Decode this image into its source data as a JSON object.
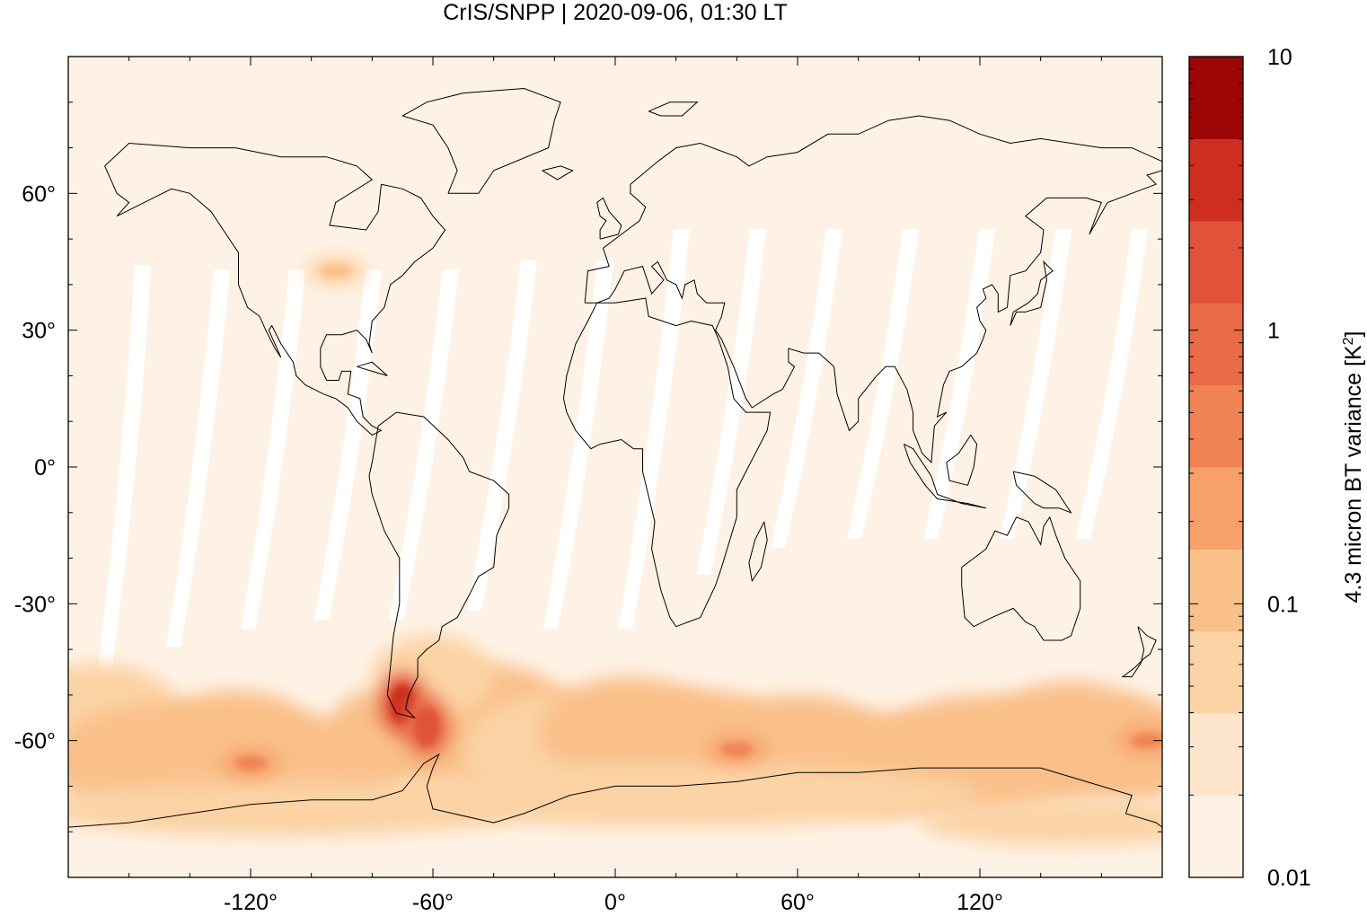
{
  "chart_data": {
    "type": "heatmap",
    "title": "CrIS/SNPP | 2020-09-06, 01:30 LT",
    "xlabel": "",
    "ylabel": "",
    "projection": "equirectangular world map with coastlines",
    "xlim": [
      -180,
      180
    ],
    "ylim": [
      -90,
      90
    ],
    "x_ticks": [
      -120,
      -60,
      0,
      60,
      120
    ],
    "x_tick_labels": [
      "-120°",
      "-60°",
      "0°",
      "60°",
      "120°"
    ],
    "y_ticks": [
      60,
      30,
      0,
      -30,
      -60
    ],
    "y_tick_labels": [
      "60°",
      "30°",
      "0°",
      "-30°",
      "-60°"
    ],
    "colorbar": {
      "label": "4.3 micron BT variance [K²]",
      "label_base": "4.3 micron BT variance [K",
      "label_sup": "2",
      "label_end": "]",
      "scale": "log",
      "range": [
        0.01,
        10
      ],
      "tick_values": [
        10,
        1,
        0.1,
        0.01
      ],
      "tick_labels": [
        "10",
        "1",
        "0.1",
        "0.01"
      ],
      "levels": [
        {
          "from": 0.01,
          "to": 0.02,
          "color": "#fef2e6"
        },
        {
          "from": 0.02,
          "to": 0.04,
          "color": "#fde6cc"
        },
        {
          "from": 0.04,
          "to": 0.08,
          "color": "#fbd3a4"
        },
        {
          "from": 0.08,
          "to": 0.15,
          "color": "#f9c08a"
        },
        {
          "from": 0.15,
          "to": 0.3,
          "color": "#f7a06a"
        },
        {
          "from": 0.3,
          "to": 0.6,
          "color": "#f08354"
        },
        {
          "from": 0.6,
          "to": 1.2,
          "color": "#e86a46"
        },
        {
          "from": 1.2,
          "to": 2.5,
          "color": "#e0523a"
        },
        {
          "from": 2.5,
          "to": 5,
          "color": "#cd2e1e"
        },
        {
          "from": 5,
          "to": 10,
          "color": "#9c0606"
        }
      ]
    },
    "background_value": 0.015,
    "features": [
      {
        "name": "southern hemisphere storm-track band",
        "lat_range": [
          -75,
          -50
        ],
        "lon_range": [
          -180,
          180
        ],
        "typical_value": 0.1
      },
      {
        "name": "southern Andes / Patagonia hotspot",
        "lat": -52,
        "lon": -70,
        "value": 3
      },
      {
        "name": "Drake Passage",
        "lat": -57,
        "lon": -62,
        "value": 1.5
      },
      {
        "name": "Southern Ocean south of Africa",
        "lat": -62,
        "lon": 40,
        "value": 0.4
      },
      {
        "name": "South Pacific",
        "lat": -65,
        "lon": -120,
        "value": 0.3
      },
      {
        "name": "Southern Ocean near New Zealand",
        "lat": -60,
        "lon": 175,
        "value": 0.4
      },
      {
        "name": "US Midwest spot",
        "lat": 43,
        "lon": -92,
        "value": 0.08
      }
    ],
    "swath_gaps": "white diagonal no-data gaps between satellite swaths in the tropics and subtropics",
    "colors": {
      "land_outline": "#000000",
      "no_data": "#ffffff",
      "frame": "#000000"
    }
  }
}
